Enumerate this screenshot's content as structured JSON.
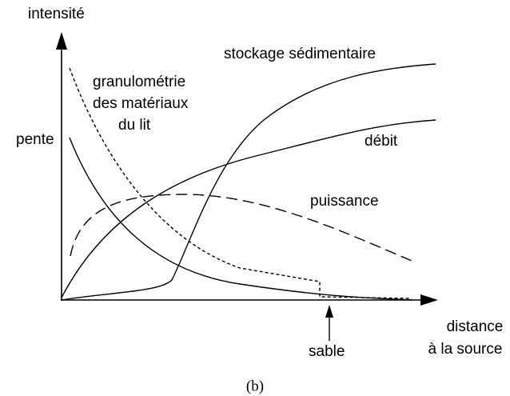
{
  "axes": {
    "y_label": "intensité",
    "x_label_lines": [
      "distance",
      "à la source"
    ]
  },
  "curves": {
    "stockage": "stockage sédimentaire",
    "granulometrie_lines": [
      "granulométrie",
      "des matériaux",
      "du lit"
    ],
    "pente": "pente",
    "debit": "débit",
    "puissance": "puissance"
  },
  "annotation": "sable",
  "caption": "(b)"
}
